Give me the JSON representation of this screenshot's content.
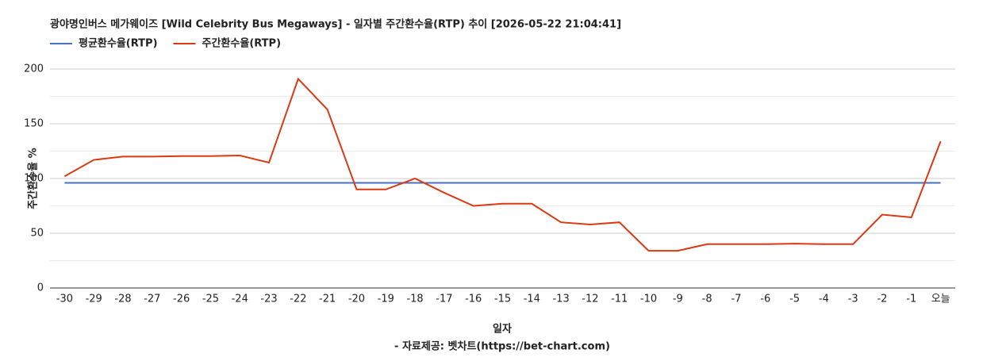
{
  "chart_data": {
    "type": "line",
    "title": "광야명인버스 메가웨이즈 [Wild Celebrity Bus Megaways] - 일자별 주간환수율(RTP) 추이 [2026-05-22 21:04:41]",
    "x_label": "일자",
    "y_label": "주간환수율 %",
    "footer": "- 자료제공: 벳차트(https://bet-chart.com)",
    "categories": [
      "-30",
      "-29",
      "-28",
      "-27",
      "-26",
      "-25",
      "-24",
      "-23",
      "-22",
      "-21",
      "-20",
      "-19",
      "-18",
      "-17",
      "-16",
      "-15",
      "-14",
      "-13",
      "-12",
      "-11",
      "-10",
      "-9",
      "-8",
      "-7",
      "-6",
      "-5",
      "-4",
      "-3",
      "-2",
      "-1",
      "오늘"
    ],
    "series": [
      {
        "name": "평균환수율(RTP)",
        "color": "#4472c4",
        "values": [
          96,
          96,
          96,
          96,
          96,
          96,
          96,
          96,
          96,
          96,
          96,
          96,
          96,
          96,
          96,
          96,
          96,
          96,
          96,
          96,
          96,
          96,
          96,
          96,
          96,
          96,
          96,
          96,
          96,
          96,
          96
        ]
      },
      {
        "name": "주간환수율(RTP)",
        "color": "#dc3912",
        "values": [
          102,
          117,
          120,
          120,
          120.5,
          120.5,
          121,
          114.5,
          191,
          163,
          90,
          90,
          100,
          87,
          75,
          77,
          77,
          60,
          58,
          60,
          34,
          34,
          40,
          40,
          40,
          40.5,
          40,
          40,
          67,
          64.5,
          134
        ]
      }
    ],
    "ylim": [
      0,
      200
    ],
    "yticks": [
      0,
      50,
      100,
      150,
      200
    ],
    "minor_yticks": [
      25,
      75,
      125,
      175
    ],
    "grid": true
  }
}
